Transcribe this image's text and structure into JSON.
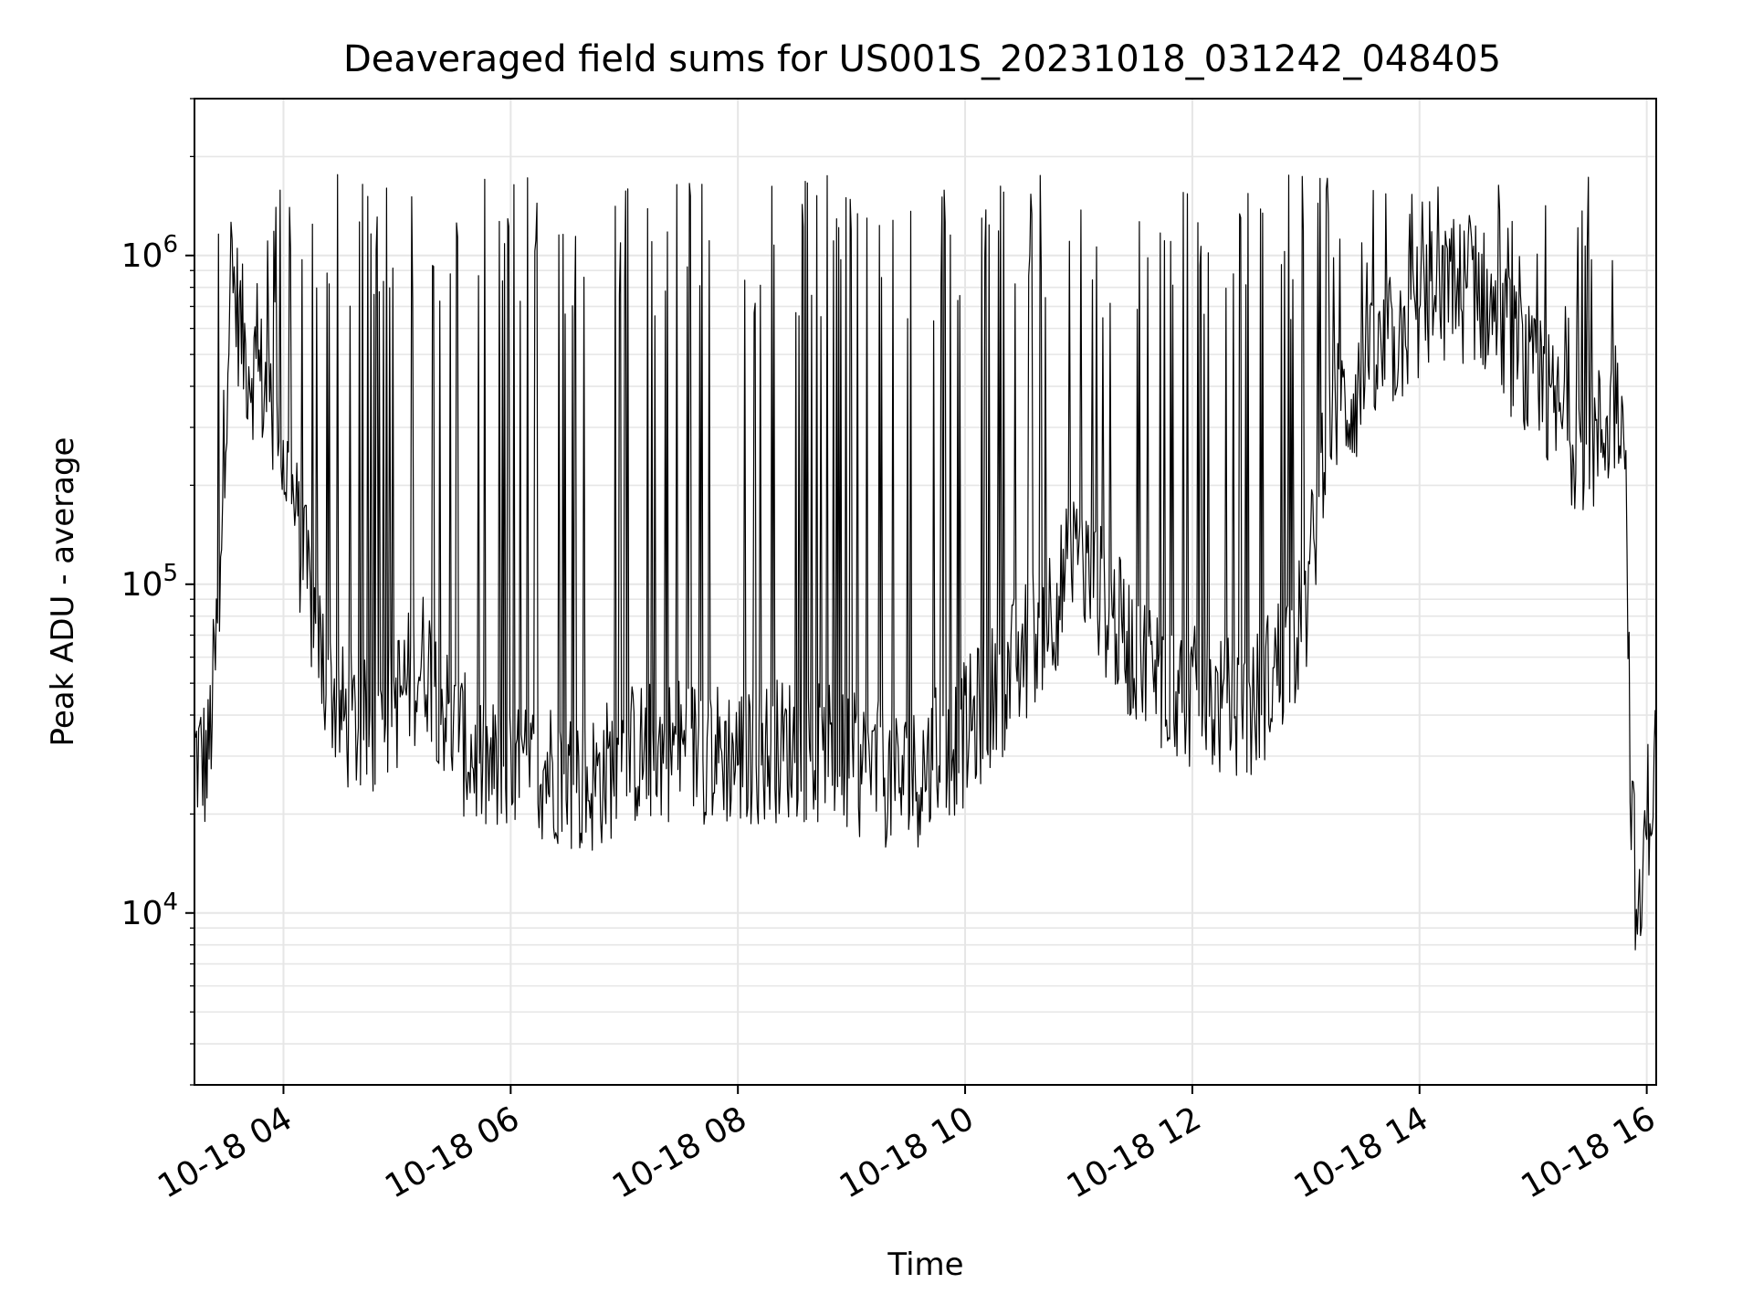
{
  "chart_data": {
    "type": "line",
    "title": "Deaveraged field sums for US001S_20231018_031242_048405",
    "xlabel": "Time",
    "ylabel": "Peak ADU - average",
    "xscale": "time",
    "yscale": "log",
    "xlim": [
      "2023-10-18 03:13",
      "2023-10-18 16:05"
    ],
    "ylim": [
      3000,
      3000000
    ],
    "grid": true,
    "x_ticks": [
      "10-18 04",
      "10-18 06",
      "10-18 08",
      "10-18 10",
      "10-18 12",
      "10-18 14",
      "10-18 16"
    ],
    "y_ticks": [
      {
        "base": "10",
        "exp": "4",
        "value": 10000
      },
      {
        "base": "10",
        "exp": "5",
        "value": 100000
      },
      {
        "base": "10",
        "exp": "6",
        "value": 1000000
      }
    ],
    "line_color": "#000000",
    "series": [
      {
        "x": [
          "2023-10-18 03:13",
          "2023-10-18 03:20",
          "2023-10-18 03:25",
          "2023-10-18 03:32",
          "2023-10-18 03:40",
          "2023-10-18 03:50",
          "2023-10-18 04:00",
          "2023-10-18 04:10",
          "2023-10-18 04:20",
          "2023-10-18 04:30",
          "2023-10-18 04:45",
          "2023-10-18 05:00",
          "2023-10-18 05:15",
          "2023-10-18 05:30",
          "2023-10-18 05:45",
          "2023-10-18 06:00",
          "2023-10-18 06:20",
          "2023-10-18 06:40",
          "2023-10-18 07:00",
          "2023-10-18 07:30",
          "2023-10-18 08:00",
          "2023-10-18 08:30",
          "2023-10-18 09:00",
          "2023-10-18 09:30",
          "2023-10-18 10:00",
          "2023-10-18 10:30",
          "2023-10-18 11:00",
          "2023-10-18 11:30",
          "2023-10-18 12:00",
          "2023-10-18 12:30",
          "2023-10-18 13:00",
          "2023-10-18 13:10",
          "2023-10-18 13:30",
          "2023-10-18 14:00",
          "2023-10-18 14:30",
          "2023-10-18 15:00",
          "2023-10-18 15:30",
          "2023-10-18 15:48",
          "2023-10-18 15:52",
          "2023-10-18 15:56",
          "2023-10-18 16:00",
          "2023-10-18 16:05"
        ],
        "y": [
          30000,
          28000,
          70000,
          900000,
          500000,
          400000,
          250000,
          120000,
          60000,
          40000,
          35000,
          45000,
          60000,
          35000,
          28000,
          25000,
          28000,
          24000,
          30000,
          32000,
          30000,
          32000,
          28000,
          25000,
          35000,
          60000,
          120000,
          60000,
          45000,
          40000,
          80000,
          300000,
          400000,
          700000,
          800000,
          400000,
          250000,
          400000,
          20000,
          8000,
          20000,
          28000
        ]
      }
    ]
  }
}
